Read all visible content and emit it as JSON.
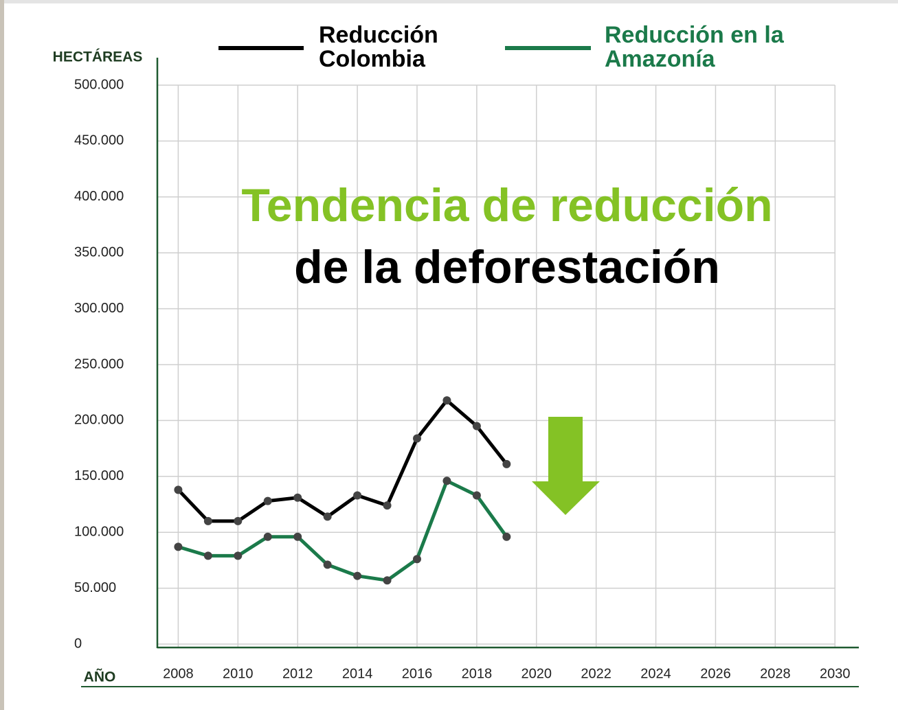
{
  "chart_data": {
    "type": "line",
    "y_label": "HECTÁREAS",
    "x_label": "AÑO",
    "annotations": [
      {
        "text": "Tendencia de reducción",
        "color": "#84c225"
      },
      {
        "text": "de la deforestación",
        "color": "#000000"
      }
    ],
    "x": [
      2008,
      2009,
      2010,
      2011,
      2012,
      2013,
      2014,
      2015,
      2016,
      2017,
      2018,
      2019
    ],
    "series": [
      {
        "name": "Reducción Colombia",
        "color": "#000000",
        "values": [
          138000,
          110000,
          110000,
          128000,
          131000,
          114000,
          133000,
          124000,
          184000,
          218000,
          195000,
          161000
        ]
      },
      {
        "name": "Reducción en la Amazonía",
        "color": "#1b7a4a",
        "values": [
          87000,
          79000,
          79000,
          96000,
          96000,
          71000,
          61000,
          57000,
          76000,
          146000,
          133000,
          96000
        ]
      }
    ],
    "marker_color": "#444444",
    "xlim": [
      2007.3,
      2030.8
    ],
    "xticks": [
      2008,
      2010,
      2012,
      2014,
      2016,
      2018,
      2020,
      2022,
      2024,
      2026,
      2028,
      2030
    ],
    "ylim": [
      0,
      500000
    ],
    "yticks": [
      0,
      {
        "value": 50000,
        "label": "50.000"
      },
      {
        "value": 100000,
        "label": "100.000"
      },
      {
        "value": 150000,
        "label": "150.000"
      },
      {
        "value": 200000,
        "label": "200.000"
      },
      {
        "value": 250000,
        "label": "250.000"
      },
      {
        "value": 300000,
        "label": "300.000"
      },
      {
        "value": 350000,
        "label": "350.000"
      },
      {
        "value": 400000,
        "label": "400.000"
      },
      {
        "value": 450000,
        "label": "450.000"
      },
      {
        "value": 500000,
        "label": "500.000"
      }
    ],
    "grid": true
  }
}
